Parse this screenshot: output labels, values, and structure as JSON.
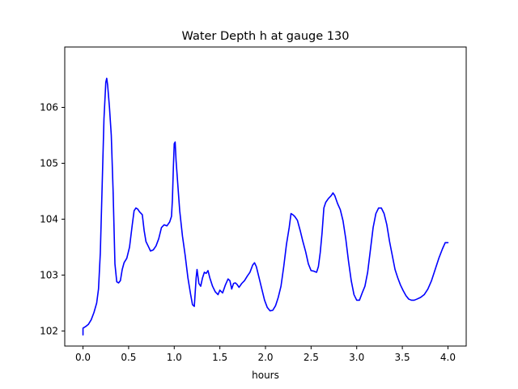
{
  "chart_data": {
    "type": "line",
    "title": "Water Depth h at gauge 130",
    "xlabel": "hours",
    "ylabel": "",
    "xlim": [
      -0.2,
      4.2
    ],
    "ylim": [
      101.73,
      107.08
    ],
    "x_ticks": [
      0.0,
      0.5,
      1.0,
      1.5,
      2.0,
      2.5,
      3.0,
      3.5,
      4.0
    ],
    "x_tick_labels": [
      "0.0",
      "0.5",
      "1.0",
      "1.5",
      "2.0",
      "2.5",
      "3.0",
      "3.5",
      "4.0"
    ],
    "y_ticks": [
      102,
      103,
      104,
      105,
      106
    ],
    "y_tick_labels": [
      "102",
      "103",
      "104",
      "105",
      "106"
    ],
    "grid": false,
    "series": [
      {
        "color": "#0000ff",
        "points": [
          [
            0.0,
            101.93
          ],
          [
            0.0,
            102.05
          ],
          [
            0.03,
            102.08
          ],
          [
            0.06,
            102.12
          ],
          [
            0.09,
            102.2
          ],
          [
            0.12,
            102.33
          ],
          [
            0.15,
            102.5
          ],
          [
            0.17,
            102.75
          ],
          [
            0.19,
            103.4
          ],
          [
            0.21,
            104.6
          ],
          [
            0.23,
            105.8
          ],
          [
            0.25,
            106.45
          ],
          [
            0.26,
            106.52
          ],
          [
            0.27,
            106.4
          ],
          [
            0.29,
            106.0
          ],
          [
            0.31,
            105.5
          ],
          [
            0.33,
            104.5
          ],
          [
            0.35,
            103.2
          ],
          [
            0.37,
            102.88
          ],
          [
            0.39,
            102.86
          ],
          [
            0.41,
            102.9
          ],
          [
            0.43,
            103.1
          ],
          [
            0.45,
            103.22
          ],
          [
            0.48,
            103.3
          ],
          [
            0.51,
            103.5
          ],
          [
            0.54,
            103.9
          ],
          [
            0.56,
            104.15
          ],
          [
            0.58,
            104.2
          ],
          [
            0.6,
            104.18
          ],
          [
            0.62,
            104.13
          ],
          [
            0.65,
            104.08
          ],
          [
            0.67,
            103.8
          ],
          [
            0.69,
            103.6
          ],
          [
            0.72,
            103.5
          ],
          [
            0.74,
            103.43
          ],
          [
            0.77,
            103.45
          ],
          [
            0.8,
            103.52
          ],
          [
            0.83,
            103.65
          ],
          [
            0.86,
            103.85
          ],
          [
            0.89,
            103.9
          ],
          [
            0.92,
            103.88
          ],
          [
            0.95,
            103.95
          ],
          [
            0.97,
            104.05
          ],
          [
            0.98,
            104.35
          ],
          [
            0.99,
            104.9
          ],
          [
            1.0,
            105.35
          ],
          [
            1.01,
            105.38
          ],
          [
            1.02,
            105.05
          ],
          [
            1.04,
            104.6
          ],
          [
            1.06,
            104.15
          ],
          [
            1.09,
            103.7
          ],
          [
            1.12,
            103.35
          ],
          [
            1.15,
            102.95
          ],
          [
            1.18,
            102.65
          ],
          [
            1.2,
            102.47
          ],
          [
            1.22,
            102.44
          ],
          [
            1.24,
            102.95
          ],
          [
            1.25,
            103.1
          ],
          [
            1.27,
            102.85
          ],
          [
            1.29,
            102.8
          ],
          [
            1.31,
            102.95
          ],
          [
            1.33,
            103.05
          ],
          [
            1.35,
            103.03
          ],
          [
            1.37,
            103.08
          ],
          [
            1.39,
            102.95
          ],
          [
            1.42,
            102.8
          ],
          [
            1.45,
            102.7
          ],
          [
            1.48,
            102.65
          ],
          [
            1.5,
            102.73
          ],
          [
            1.53,
            102.68
          ],
          [
            1.56,
            102.82
          ],
          [
            1.59,
            102.93
          ],
          [
            1.61,
            102.9
          ],
          [
            1.63,
            102.75
          ],
          [
            1.65,
            102.85
          ],
          [
            1.67,
            102.86
          ],
          [
            1.69,
            102.83
          ],
          [
            1.71,
            102.78
          ],
          [
            1.74,
            102.85
          ],
          [
            1.77,
            102.9
          ],
          [
            1.8,
            102.98
          ],
          [
            1.83,
            103.05
          ],
          [
            1.86,
            103.18
          ],
          [
            1.88,
            103.22
          ],
          [
            1.9,
            103.15
          ],
          [
            1.93,
            102.95
          ],
          [
            1.96,
            102.75
          ],
          [
            1.99,
            102.55
          ],
          [
            2.02,
            102.42
          ],
          [
            2.05,
            102.36
          ],
          [
            2.08,
            102.37
          ],
          [
            2.11,
            102.45
          ],
          [
            2.14,
            102.6
          ],
          [
            2.17,
            102.8
          ],
          [
            2.2,
            103.15
          ],
          [
            2.23,
            103.55
          ],
          [
            2.26,
            103.85
          ],
          [
            2.28,
            104.1
          ],
          [
            2.3,
            104.08
          ],
          [
            2.32,
            104.05
          ],
          [
            2.35,
            103.98
          ],
          [
            2.38,
            103.8
          ],
          [
            2.41,
            103.6
          ],
          [
            2.44,
            103.42
          ],
          [
            2.47,
            103.2
          ],
          [
            2.5,
            103.08
          ],
          [
            2.53,
            103.07
          ],
          [
            2.56,
            103.05
          ],
          [
            2.58,
            103.15
          ],
          [
            2.6,
            103.4
          ],
          [
            2.62,
            103.75
          ],
          [
            2.64,
            104.2
          ],
          [
            2.66,
            104.3
          ],
          [
            2.69,
            104.37
          ],
          [
            2.72,
            104.42
          ],
          [
            2.74,
            104.47
          ],
          [
            2.76,
            104.42
          ],
          [
            2.79,
            104.28
          ],
          [
            2.82,
            104.17
          ],
          [
            2.85,
            103.97
          ],
          [
            2.88,
            103.65
          ],
          [
            2.91,
            103.25
          ],
          [
            2.94,
            102.9
          ],
          [
            2.97,
            102.65
          ],
          [
            3.0,
            102.55
          ],
          [
            3.03,
            102.55
          ],
          [
            3.06,
            102.68
          ],
          [
            3.09,
            102.8
          ],
          [
            3.12,
            103.05
          ],
          [
            3.15,
            103.45
          ],
          [
            3.18,
            103.85
          ],
          [
            3.21,
            104.1
          ],
          [
            3.24,
            104.2
          ],
          [
            3.27,
            104.2
          ],
          [
            3.3,
            104.1
          ],
          [
            3.33,
            103.9
          ],
          [
            3.36,
            103.6
          ],
          [
            3.39,
            103.35
          ],
          [
            3.42,
            103.1
          ],
          [
            3.45,
            102.95
          ],
          [
            3.48,
            102.82
          ],
          [
            3.51,
            102.72
          ],
          [
            3.54,
            102.63
          ],
          [
            3.57,
            102.57
          ],
          [
            3.6,
            102.55
          ],
          [
            3.63,
            102.55
          ],
          [
            3.66,
            102.57
          ],
          [
            3.7,
            102.6
          ],
          [
            3.74,
            102.65
          ],
          [
            3.78,
            102.75
          ],
          [
            3.82,
            102.9
          ],
          [
            3.86,
            103.1
          ],
          [
            3.9,
            103.3
          ],
          [
            3.94,
            103.47
          ],
          [
            3.97,
            103.58
          ],
          [
            4.0,
            103.58
          ]
        ]
      }
    ]
  }
}
